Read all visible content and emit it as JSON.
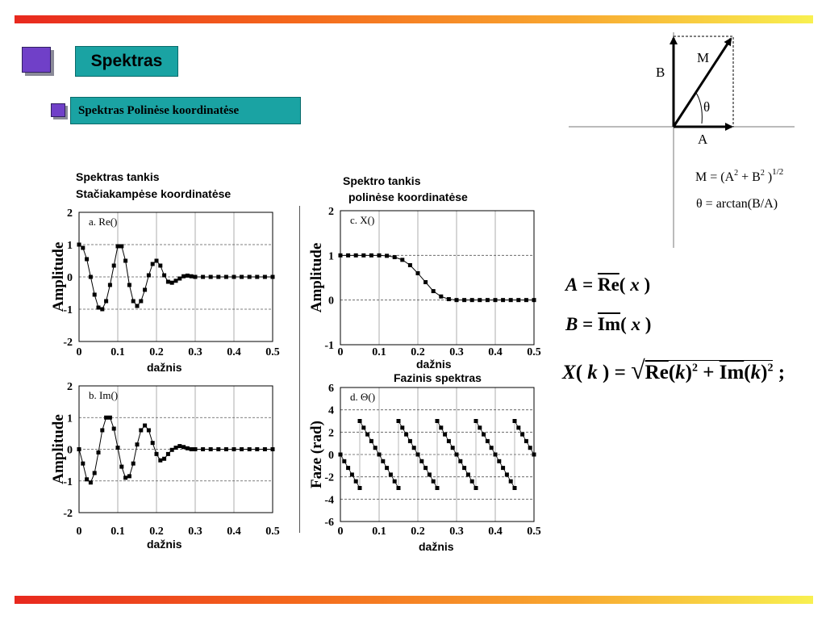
{
  "slide": {
    "title": "Spektras",
    "bullet": "Spektras Polinėse koordinatėse"
  },
  "captions": {
    "left_title_1": "Spektras tankis",
    "left_title_2": "Stačiakampėse koordinatėse",
    "right_title_1": "Spektro tankis",
    "right_title_2": "polinėse koordinatėse",
    "xlabel_a": "dažnis",
    "xlabel_b": "dažnis",
    "xlabel_c": "dažnis",
    "phase_title": "Fazinis spektras",
    "xlabel_d": "dažnis"
  },
  "vector_diagram": {
    "label_B": "B",
    "label_M": "M",
    "label_A": "A",
    "label_theta": "θ",
    "formula_M": "M = (A² + B² )^1/2",
    "formula_theta": "θ = arctan(B/A)"
  },
  "formulas": {
    "A": "A = Re(x)",
    "B": "B = Im(x)",
    "X": "X(k) = √(Re(k)² + Im(k)²);"
  },
  "colors": {
    "accent_teal": "#1aa3a3",
    "bullet_purple": "#7040c8",
    "band_start": "#e8281e",
    "band_end": "#f8f050"
  },
  "chart_data": [
    {
      "id": "a",
      "type": "line",
      "panel_label": "a. Re()",
      "ylabel": "Amplitude",
      "xlabel": "dažnis",
      "xlim": [
        0,
        0.5
      ],
      "ylim": [
        -2,
        2
      ],
      "x_ticks": [
        "0",
        "0.1",
        "0.2",
        "0.3",
        "0.4",
        "0.5"
      ],
      "y_ticks": [
        "-2",
        "-1",
        "0",
        "1",
        "2"
      ],
      "x": [
        0.0,
        0.01,
        0.02,
        0.03,
        0.04,
        0.05,
        0.06,
        0.07,
        0.08,
        0.09,
        0.1,
        0.11,
        0.12,
        0.13,
        0.14,
        0.15,
        0.16,
        0.17,
        0.18,
        0.19,
        0.2,
        0.21,
        0.22,
        0.23,
        0.24,
        0.25,
        0.26,
        0.27,
        0.28,
        0.29,
        0.3,
        0.32,
        0.34,
        0.36,
        0.38,
        0.4,
        0.42,
        0.44,
        0.46,
        0.48,
        0.5
      ],
      "y": [
        1.0,
        0.9,
        0.55,
        0.0,
        -0.55,
        -0.95,
        -1.0,
        -0.75,
        -0.25,
        0.35,
        0.95,
        0.95,
        0.5,
        -0.25,
        -0.75,
        -0.9,
        -0.75,
        -0.4,
        0.05,
        0.4,
        0.5,
        0.35,
        0.05,
        -0.15,
        -0.18,
        -0.12,
        -0.05,
        0.02,
        0.04,
        0.02,
        0.0,
        0.0,
        0.0,
        0.0,
        0.0,
        0.0,
        0.0,
        0.0,
        0.0,
        0.0,
        0.0
      ],
      "grid": true
    },
    {
      "id": "b",
      "type": "line",
      "panel_label": "b. Im()",
      "ylabel": "Amplitude",
      "xlabel": "dažnis",
      "xlim": [
        0,
        0.5
      ],
      "ylim": [
        -2,
        2
      ],
      "x_ticks": [
        "0",
        "0.1",
        "0.2",
        "0.3",
        "0.4",
        "0.5"
      ],
      "y_ticks": [
        "-2",
        "-1",
        "0",
        "1",
        "2"
      ],
      "x": [
        0.0,
        0.01,
        0.02,
        0.03,
        0.04,
        0.05,
        0.06,
        0.07,
        0.08,
        0.09,
        0.1,
        0.11,
        0.12,
        0.13,
        0.14,
        0.15,
        0.16,
        0.17,
        0.18,
        0.19,
        0.2,
        0.21,
        0.22,
        0.23,
        0.24,
        0.25,
        0.26,
        0.27,
        0.28,
        0.29,
        0.3,
        0.32,
        0.34,
        0.36,
        0.38,
        0.4,
        0.42,
        0.44,
        0.46,
        0.48,
        0.5
      ],
      "y": [
        0.0,
        -0.45,
        -0.95,
        -1.05,
        -0.75,
        -0.1,
        0.6,
        1.0,
        1.0,
        0.65,
        0.05,
        -0.55,
        -0.9,
        -0.85,
        -0.45,
        0.15,
        0.6,
        0.75,
        0.6,
        0.2,
        -0.15,
        -0.35,
        -0.3,
        -0.15,
        -0.02,
        0.05,
        0.1,
        0.07,
        0.03,
        0.0,
        0.0,
        0.0,
        0.0,
        0.0,
        0.0,
        0.0,
        0.0,
        0.0,
        0.0,
        0.0,
        0.0
      ],
      "grid": true
    },
    {
      "id": "c",
      "type": "line",
      "panel_label": "c. X()",
      "ylabel": "Amplitude",
      "xlabel": "dažnis",
      "xlim": [
        0,
        0.5
      ],
      "ylim": [
        -1,
        2
      ],
      "x_ticks": [
        "0",
        "0.1",
        "0.2",
        "0.3",
        "0.4",
        "0.5"
      ],
      "y_ticks": [
        "-1",
        "0",
        "1",
        "2"
      ],
      "x": [
        0.0,
        0.02,
        0.04,
        0.06,
        0.08,
        0.1,
        0.12,
        0.14,
        0.16,
        0.18,
        0.2,
        0.22,
        0.24,
        0.26,
        0.28,
        0.3,
        0.32,
        0.34,
        0.36,
        0.38,
        0.4,
        0.42,
        0.44,
        0.46,
        0.48,
        0.5
      ],
      "y": [
        1.0,
        1.0,
        1.0,
        1.0,
        1.0,
        1.0,
        0.99,
        0.96,
        0.9,
        0.78,
        0.6,
        0.4,
        0.2,
        0.08,
        0.02,
        0.0,
        0.0,
        0.0,
        0.0,
        0.0,
        0.0,
        0.0,
        0.0,
        0.0,
        0.0,
        0.0
      ],
      "grid": true
    },
    {
      "id": "d",
      "type": "scatter",
      "panel_label": "d. Θ()",
      "ylabel": "Faze (rad)",
      "xlabel": "dažnis",
      "xlim": [
        0,
        0.5
      ],
      "ylim": [
        -6,
        6
      ],
      "x_ticks": [
        "0",
        "0.1",
        "0.2",
        "0.3",
        "0.4",
        "0.5"
      ],
      "y_ticks": [
        "-6",
        "-4",
        "-2",
        "0",
        "2",
        "4",
        "6"
      ],
      "x": [
        0.0,
        0.01,
        0.02,
        0.03,
        0.04,
        0.05,
        0.05,
        0.06,
        0.07,
        0.08,
        0.09,
        0.1,
        0.11,
        0.12,
        0.13,
        0.14,
        0.15,
        0.15,
        0.16,
        0.17,
        0.18,
        0.19,
        0.2,
        0.21,
        0.22,
        0.23,
        0.24,
        0.25,
        0.25,
        0.26,
        0.27,
        0.28,
        0.29,
        0.3,
        0.31,
        0.32,
        0.33,
        0.34,
        0.35,
        0.35,
        0.36,
        0.37,
        0.38,
        0.39,
        0.4,
        0.41,
        0.42,
        0.43,
        0.44,
        0.45,
        0.45,
        0.46,
        0.47,
        0.48,
        0.49,
        0.5
      ],
      "y": [
        0.0,
        -0.6,
        -1.2,
        -1.8,
        -2.4,
        -3.0,
        3.0,
        2.4,
        1.8,
        1.2,
        0.6,
        0.0,
        -0.6,
        -1.2,
        -1.8,
        -2.4,
        -3.0,
        3.0,
        2.4,
        1.8,
        1.2,
        0.6,
        0.0,
        -0.6,
        -1.2,
        -1.8,
        -2.4,
        -3.0,
        3.0,
        2.4,
        1.8,
        1.2,
        0.6,
        0.0,
        -0.6,
        -1.2,
        -1.8,
        -2.4,
        -3.0,
        3.0,
        2.4,
        1.8,
        1.2,
        0.6,
        0.0,
        -0.6,
        -1.2,
        -1.8,
        -2.4,
        -3.0,
        3.0,
        2.4,
        1.8,
        1.2,
        0.6,
        0.0
      ],
      "grid": true
    }
  ]
}
